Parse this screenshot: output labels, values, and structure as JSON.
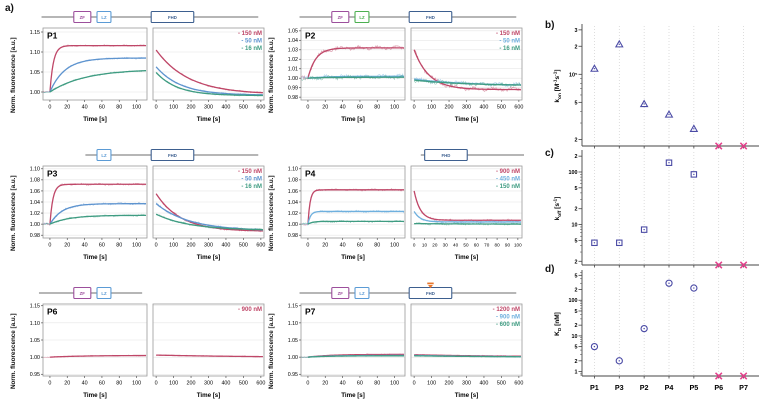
{
  "figure_labels": {
    "a": "a)",
    "b": "b)",
    "c": "c)",
    "d": "d)"
  },
  "axes": {
    "kinetics_ylabel": "Norm. fluorescence [a.u.]",
    "kinetics_xlabel": "Time [s]"
  },
  "palette": {
    "red": "#bf4768",
    "blue": "#5e94cf",
    "lightblue": "#6fb0de",
    "teal": "#3f9c82",
    "marker": "#4a4aa5",
    "cross": "#e5408c",
    "domain_line": "#8a8a8a",
    "mutation": "#e8762c"
  },
  "chart_data": [
    {
      "id": "P1",
      "type": "line",
      "title": "P1",
      "noise": 0.003,
      "diagram": {
        "line": [
          0.13,
          0.97
        ],
        "domains": [
          {
            "label": "ZF",
            "x": 0.255,
            "w": 0.066,
            "color": "#9c4f9c"
          },
          {
            "label": "LZ",
            "x": 0.345,
            "w": 0.054,
            "color": "#5b9bd5"
          },
          {
            "label": "FHD",
            "x": 0.555,
            "w": 0.165,
            "color": "#3d5f8f"
          }
        ]
      },
      "ylim": [
        0.98,
        1.16
      ],
      "yticks": [
        1.0,
        1.05,
        1.1,
        1.15
      ],
      "assoc": {
        "xlim": [
          -8,
          112
        ],
        "xticks": [
          0,
          20,
          40,
          60,
          80,
          100
        ]
      },
      "dissoc": {
        "xlim": [
          -18,
          618
        ],
        "xticks": [
          0,
          100,
          200,
          300,
          400,
          500,
          600
        ]
      },
      "series": [
        {
          "label": "150 nM",
          "color": "#bf4768",
          "assoc": {
            "p": 1.116,
            "tau": 4
          },
          "dissoc": {
            "s": 1.105,
            "e": 0.994,
            "tau": 185
          }
        },
        {
          "label": "50 nM",
          "color": "#5e94cf",
          "assoc": {
            "p": 1.085,
            "tau": 17
          },
          "dissoc": {
            "s": 1.063,
            "e": 0.992,
            "tau": 140
          }
        },
        {
          "label": "16 nM",
          "color": "#3f9c82",
          "assoc": {
            "p": 1.057,
            "tau": 40
          },
          "dissoc": {
            "s": 1.049,
            "e": 0.991,
            "tau": 120
          }
        }
      ]
    },
    {
      "id": "P2",
      "type": "line",
      "title": "P2",
      "noise": 0.0032,
      "diagram": {
        "line": [
          0.13,
          0.97
        ],
        "domains": [
          {
            "label": "ZF",
            "x": 0.255,
            "w": 0.066,
            "color": "#9c4f9c"
          },
          {
            "label": "LZ",
            "x": 0.345,
            "w": 0.054,
            "color": "#4caf50"
          },
          {
            "label": "FHD",
            "x": 0.555,
            "w": 0.165,
            "color": "#3d5f8f"
          }
        ]
      },
      "ylim": [
        0.977,
        1.053
      ],
      "yticks": [
        0.98,
        0.99,
        1.0,
        1.01,
        1.02,
        1.03,
        1.04,
        1.05
      ],
      "assoc": {
        "xlim": [
          -8,
          112
        ],
        "xticks": [
          0,
          20,
          40,
          60,
          80,
          100
        ]
      },
      "dissoc": {
        "xlim": [
          -18,
          618
        ],
        "xticks": [
          0,
          100,
          200,
          300,
          400,
          500,
          600
        ]
      },
      "series": [
        {
          "label": "150 nM",
          "color": "#bf4768",
          "assoc": {
            "p": 1.032,
            "tau": 9
          },
          "dissoc": {
            "s": 1.03,
            "e": 0.988,
            "tau": 85
          }
        },
        {
          "label": "50 nM",
          "color": "#6fb0de",
          "assoc": {
            "p": 1.002,
            "tau": 20
          },
          "dissoc": {
            "s": 0.999,
            "e": 0.992,
            "tau": 300
          }
        },
        {
          "label": "16 nM",
          "color": "#3f9c82",
          "assoc": {
            "p": 1.001,
            "tau": 20
          },
          "dissoc": {
            "s": 0.998,
            "e": 0.992,
            "tau": 300
          }
        }
      ]
    },
    {
      "id": "P3",
      "type": "line",
      "title": "P3",
      "noise": 0.003,
      "diagram": {
        "line": [
          0.3,
          0.97
        ],
        "domains": [
          {
            "label": "LZ",
            "x": 0.345,
            "w": 0.054,
            "color": "#5b9bd5"
          },
          {
            "label": "FHD",
            "x": 0.555,
            "w": 0.165,
            "color": "#3d5f8f"
          }
        ]
      },
      "ylim": [
        0.975,
        1.105
      ],
      "yticks": [
        0.98,
        1.0,
        1.02,
        1.04,
        1.06,
        1.08,
        1.1
      ],
      "assoc": {
        "xlim": [
          -8,
          112
        ],
        "xticks": [
          0,
          20,
          40,
          60,
          80,
          100
        ]
      },
      "dissoc": {
        "xlim": [
          -18,
          618
        ],
        "xticks": [
          0,
          100,
          200,
          300,
          400,
          500,
          600
        ]
      },
      "series": [
        {
          "label": "150 nM",
          "color": "#bf4768",
          "assoc": {
            "p": 1.072,
            "tau": 3.5
          },
          "dissoc": {
            "s": 1.055,
            "e": 0.987,
            "tau": 140
          }
        },
        {
          "label": "50 nM",
          "color": "#5e94cf",
          "assoc": {
            "p": 1.037,
            "tau": 14
          },
          "dissoc": {
            "s": 1.037,
            "e": 0.988,
            "tau": 190
          }
        },
        {
          "label": "16 nM",
          "color": "#3f9c82",
          "assoc": {
            "p": 1.016,
            "tau": 22
          },
          "dissoc": {
            "s": 1.018,
            "e": 0.989,
            "tau": 190
          }
        }
      ]
    },
    {
      "id": "P4",
      "type": "line",
      "title": "P4",
      "noise": 0.003,
      "diagram": {
        "line": [
          0.6,
          1.0
        ],
        "domains": [
          {
            "label": "FHD",
            "x": 0.615,
            "w": 0.165,
            "color": "#3d5f8f"
          }
        ]
      },
      "ylim": [
        0.975,
        1.105
      ],
      "yticks": [
        0.98,
        1.0,
        1.02,
        1.04,
        1.06,
        1.08,
        1.1
      ],
      "assoc": {
        "xlim": [
          -8,
          112
        ],
        "xticks": [
          0,
          20,
          40,
          60,
          80,
          100
        ]
      },
      "dissoc": {
        "xlim": [
          -3,
          104
        ],
        "xticks": [
          0,
          10,
          20,
          30,
          40,
          50,
          60,
          70,
          80,
          90,
          100
        ]
      },
      "series": [
        {
          "label": "900 nM",
          "color": "#bf4768",
          "assoc": {
            "p": 1.062,
            "tau": 2.5
          },
          "dissoc": {
            "s": 1.06,
            "e": 1.007,
            "tau": 6
          }
        },
        {
          "label": "450 nM",
          "color": "#6fb0de",
          "assoc": {
            "p": 1.023,
            "tau": 3
          },
          "dissoc": {
            "s": 1.023,
            "e": 1.004,
            "tau": 6
          }
        },
        {
          "label": "150 nM",
          "color": "#3f9c82",
          "assoc": {
            "p": 1.005,
            "tau": 5
          },
          "dissoc": {
            "s": 1.001,
            "e": 1.0,
            "tau": 50
          }
        }
      ]
    },
    {
      "id": "P6",
      "type": "line",
      "title": "P6",
      "noise": 0.002,
      "diagram": {
        "line": [
          0.12,
          0.52
        ],
        "domains": [
          {
            "label": "ZF",
            "x": 0.255,
            "w": 0.066,
            "color": "#9c4f9c"
          },
          {
            "label": "LZ",
            "x": 0.345,
            "w": 0.054,
            "color": "#5b9bd5"
          }
        ]
      },
      "ylim": [
        0.945,
        1.155
      ],
      "yticks": [
        0.95,
        1.0,
        1.05,
        1.1,
        1.15
      ],
      "assoc": {
        "xlim": [
          -8,
          112
        ],
        "xticks": [
          0,
          20,
          40,
          60,
          80,
          100
        ]
      },
      "dissoc": {
        "xlim": [
          -18,
          618
        ],
        "xticks": [
          0,
          100,
          200,
          300,
          400,
          500,
          600
        ]
      },
      "series": [
        {
          "label": "900 nM",
          "color": "#bf4768",
          "assoc": {
            "p": 1.005,
            "tau": 40
          },
          "dissoc": {
            "s": 1.006,
            "e": 0.999,
            "tau": 600
          }
        }
      ]
    },
    {
      "id": "P7",
      "type": "line",
      "title": "P7",
      "noise": 0.0025,
      "diagram": {
        "line": [
          0.13,
          0.97
        ],
        "mutation": {
          "x": 0.6375
        },
        "domains": [
          {
            "label": "ZF",
            "x": 0.255,
            "w": 0.066,
            "color": "#9c4f9c"
          },
          {
            "label": "LZ",
            "x": 0.345,
            "w": 0.054,
            "color": "#5b9bd5"
          },
          {
            "label": "FHD",
            "x": 0.555,
            "w": 0.165,
            "color": "#3d5f8f"
          }
        ]
      },
      "ylim": [
        0.945,
        1.155
      ],
      "yticks": [
        0.95,
        1.0,
        1.05,
        1.1,
        1.15
      ],
      "assoc": {
        "xlim": [
          -8,
          112
        ],
        "xticks": [
          0,
          20,
          40,
          60,
          80,
          100
        ]
      },
      "dissoc": {
        "xlim": [
          -18,
          618
        ],
        "xticks": [
          0,
          100,
          200,
          300,
          400,
          500,
          600
        ]
      },
      "series": [
        {
          "label": "1200 nM",
          "color": "#bf4768",
          "assoc": {
            "p": 1.008,
            "tau": 25
          },
          "dissoc": {
            "s": 1.007,
            "e": 1.001,
            "tau": 500
          }
        },
        {
          "label": "900 nM",
          "color": "#6fb0de",
          "assoc": {
            "p": 1.005,
            "tau": 25
          },
          "dissoc": {
            "s": 1.005,
            "e": 1.0,
            "tau": 500
          }
        },
        {
          "label": "600 nM",
          "color": "#3f9c82",
          "assoc": {
            "p": 1.004,
            "tau": 25
          },
          "dissoc": {
            "s": 1.004,
            "e": 1.0,
            "tau": 500
          }
        }
      ]
    },
    {
      "id": "b",
      "type": "scatter",
      "marker": "triangle",
      "ylabel_parts": [
        [
          "n",
          "k"
        ],
        [
          "sub",
          "on"
        ],
        [
          "n",
          " [M"
        ],
        [
          "sup",
          "-1"
        ],
        [
          "n",
          "s"
        ],
        [
          "sup",
          "-1"
        ],
        [
          "n",
          "]"
        ]
      ],
      "log": true,
      "ylim": [
        17000,
        330000
      ],
      "yticks": [
        [
          300000,
          "3"
        ],
        [
          200000,
          "2"
        ],
        [
          100000,
          "10⁵"
        ],
        [
          50000,
          "5"
        ],
        [
          20000,
          "2"
        ]
      ],
      "categories": [
        "P1",
        "P3",
        "P2",
        "P4",
        "P5",
        "P6",
        "P7"
      ],
      "values": [
        115000,
        210000,
        48000,
        37000,
        26000,
        null,
        null
      ],
      "no_binding": [
        5,
        6
      ],
      "show_categories": false
    },
    {
      "id": "c",
      "type": "scatter",
      "marker": "square",
      "ylabel_parts": [
        [
          "n",
          "k"
        ],
        [
          "sub",
          "off"
        ],
        [
          "n",
          " [s"
        ],
        [
          "sup",
          "-1"
        ],
        [
          "n",
          "]"
        ]
      ],
      "log": true,
      "ylim": [
        1.7,
        240
      ],
      "yticks": [
        [
          200,
          "2"
        ],
        [
          100,
          "100"
        ],
        [
          50,
          "5"
        ],
        [
          20,
          "2"
        ],
        [
          10,
          "10"
        ],
        [
          5,
          "5"
        ],
        [
          2,
          "2"
        ]
      ],
      "categories": [
        "P1",
        "P3",
        "P2",
        "P4",
        "P5",
        "P6",
        "P7"
      ],
      "values": [
        4.5,
        4.5,
        8,
        150,
        90,
        null,
        null
      ],
      "no_binding": [
        5,
        6
      ],
      "show_categories": false
    },
    {
      "id": "d",
      "type": "scatter",
      "marker": "circle",
      "ylabel_parts": [
        [
          "n",
          "K"
        ],
        [
          "sub",
          "D"
        ],
        [
          "n",
          " [nM]"
        ]
      ],
      "log": true,
      "ylim": [
        0.75,
        620
      ],
      "yticks": [
        [
          500,
          "5"
        ],
        [
          200,
          "2"
        ],
        [
          100,
          "100"
        ],
        [
          50,
          "5"
        ],
        [
          20,
          "2"
        ],
        [
          10,
          "10"
        ],
        [
          5,
          "5"
        ],
        [
          2,
          "2"
        ],
        [
          1,
          "1"
        ]
      ],
      "categories": [
        "P1",
        "P3",
        "P2",
        "P4",
        "P5",
        "P6",
        "P7"
      ],
      "values": [
        5,
        2,
        16,
        300,
        220,
        null,
        null
      ],
      "no_binding": [
        5,
        6
      ],
      "show_categories": true
    }
  ]
}
